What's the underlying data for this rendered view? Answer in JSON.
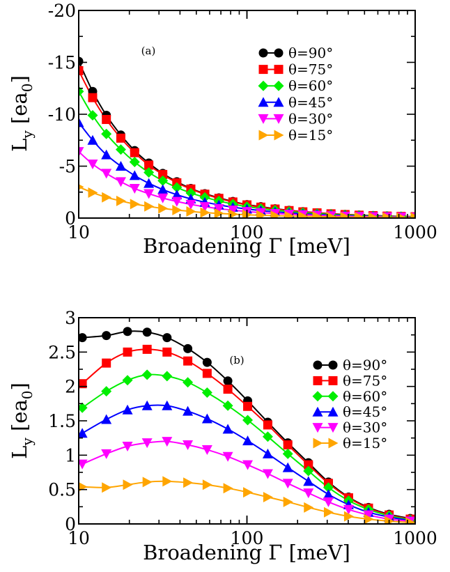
{
  "chart_data": [
    {
      "type": "line",
      "panel_label": "(a)",
      "xlabel": "Broadening Γ [meV]",
      "ylabel": {
        "main": "L",
        "sub": "y",
        "unit_pre": " [ea",
        "unit_sub": "0",
        "unit_post": "]"
      },
      "x_scale": "log",
      "xlim": [
        10,
        1000
      ],
      "ylim": [
        0,
        -20
      ],
      "x_ticks": [
        10,
        100,
        1000
      ],
      "x_tick_labels": [
        "10",
        "100",
        "1000"
      ],
      "y_ticks": [
        -20,
        -15,
        -10,
        -5,
        0
      ],
      "y_tick_labels": [
        "-20",
        "-15",
        "-10",
        "-5",
        "0"
      ],
      "legend_position": "top-right",
      "x": [
        10,
        12.1,
        14.6,
        17.8,
        21.5,
        26.1,
        31.6,
        38.3,
        46.4,
        56.2,
        68.1,
        82.5,
        100,
        121,
        147,
        178,
        215,
        261,
        316,
        383,
        464,
        562,
        681,
        825,
        1000
      ],
      "series": [
        {
          "name": "θ=90°",
          "color": "#000000",
          "marker": "circle",
          "values": [
            -15.1,
            -12.2,
            -9.9,
            -8.0,
            -6.5,
            -5.3,
            -4.3,
            -3.5,
            -2.85,
            -2.35,
            -1.95,
            -1.6,
            -1.3,
            -1.1,
            -0.9,
            -0.75,
            -0.62,
            -0.51,
            -0.42,
            -0.35,
            -0.29,
            -0.24,
            -0.2,
            -0.16,
            -0.13
          ]
        },
        {
          "name": "θ=75°",
          "color": "#ff0000",
          "marker": "square",
          "values": [
            -14.2,
            -11.6,
            -9.5,
            -7.7,
            -6.3,
            -5.1,
            -4.2,
            -3.4,
            -2.8,
            -2.3,
            -1.9,
            -1.55,
            -1.27,
            -1.05,
            -0.87,
            -0.72,
            -0.6,
            -0.5,
            -0.41,
            -0.34,
            -0.28,
            -0.23,
            -0.19,
            -0.16,
            -0.13
          ]
        },
        {
          "name": "θ=60°",
          "color": "#00ee00",
          "marker": "diamond",
          "values": [
            -12.2,
            -9.9,
            -8.1,
            -6.6,
            -5.4,
            -4.4,
            -3.6,
            -2.95,
            -2.42,
            -2.0,
            -1.65,
            -1.35,
            -1.1,
            -0.92,
            -0.76,
            -0.63,
            -0.52,
            -0.43,
            -0.36,
            -0.3,
            -0.25,
            -0.2,
            -0.17,
            -0.14,
            -0.11
          ]
        },
        {
          "name": "θ=45°",
          "color": "#0000ff",
          "marker": "triangle-up",
          "values": [
            -9.2,
            -7.5,
            -6.1,
            -5.0,
            -4.1,
            -3.35,
            -2.75,
            -2.25,
            -1.85,
            -1.53,
            -1.27,
            -1.05,
            -0.87,
            -0.72,
            -0.6,
            -0.5,
            -0.42,
            -0.35,
            -0.29,
            -0.24,
            -0.2,
            -0.17,
            -0.14,
            -0.12,
            -0.1
          ]
        },
        {
          "name": "θ=30°",
          "color": "#ff00ff",
          "marker": "triangle-down",
          "values": [
            -6.4,
            -5.2,
            -4.3,
            -3.5,
            -2.85,
            -2.35,
            -1.93,
            -1.6,
            -1.32,
            -1.1,
            -0.91,
            -0.76,
            -0.63,
            -0.53,
            -0.44,
            -0.37,
            -0.31,
            -0.26,
            -0.22,
            -0.18,
            -0.15,
            -0.13,
            -0.11,
            -0.09,
            -0.08
          ]
        },
        {
          "name": "θ=15°",
          "color": "#ffa500",
          "marker": "triangle-right",
          "values": [
            -3.0,
            -2.45,
            -2.0,
            -1.65,
            -1.35,
            -1.12,
            -0.93,
            -0.77,
            -0.64,
            -0.53,
            -0.45,
            -0.38,
            -0.32,
            -0.27,
            -0.23,
            -0.19,
            -0.16,
            -0.14,
            -0.12,
            -0.1,
            -0.08,
            -0.07,
            -0.06,
            -0.05,
            -0.04
          ]
        }
      ]
    },
    {
      "type": "line",
      "panel_label": "(b)",
      "xlabel": "Broadening Γ [meV]",
      "ylabel": {
        "main": "L",
        "sub": "y",
        "unit_pre": " [ea",
        "unit_sub": "0",
        "unit_post": "]"
      },
      "x_scale": "log",
      "xlim": [
        10,
        1000
      ],
      "ylim": [
        0,
        3
      ],
      "x_ticks": [
        10,
        100,
        1000
      ],
      "x_tick_labels": [
        "10",
        "100",
        "1000"
      ],
      "y_ticks": [
        0,
        0.5,
        1,
        1.5,
        2,
        2.5,
        3
      ],
      "y_tick_labels": [
        "0",
        "0.5",
        "1",
        "1.5",
        "2",
        "2.5",
        "3"
      ],
      "legend_position": "top-right",
      "x": [
        10.5,
        14.6,
        19.5,
        25.5,
        33.5,
        44.5,
        58,
        77,
        101,
        133,
        175,
        232,
        305,
        402,
        528,
        700,
        935
      ],
      "series": [
        {
          "name": "θ=90°",
          "color": "#000000",
          "marker": "circle",
          "values": [
            2.71,
            2.74,
            2.8,
            2.79,
            2.71,
            2.55,
            2.35,
            2.08,
            1.79,
            1.48,
            1.18,
            0.89,
            0.61,
            0.39,
            0.24,
            0.14,
            0.08
          ]
        },
        {
          "name": "θ=75°",
          "color": "#ff0000",
          "marker": "square",
          "values": [
            2.04,
            2.34,
            2.5,
            2.54,
            2.5,
            2.37,
            2.19,
            1.96,
            1.71,
            1.44,
            1.15,
            0.86,
            0.59,
            0.38,
            0.23,
            0.13,
            0.07
          ]
        },
        {
          "name": "θ=60°",
          "color": "#00ee00",
          "marker": "diamond",
          "values": [
            1.69,
            1.93,
            2.09,
            2.17,
            2.15,
            2.06,
            1.91,
            1.72,
            1.51,
            1.27,
            1.02,
            0.77,
            0.53,
            0.34,
            0.21,
            0.12,
            0.06
          ]
        },
        {
          "name": "θ=45°",
          "color": "#0000ff",
          "marker": "triangle-up",
          "values": [
            1.32,
            1.52,
            1.66,
            1.72,
            1.72,
            1.64,
            1.53,
            1.38,
            1.21,
            1.02,
            0.82,
            0.62,
            0.43,
            0.28,
            0.17,
            0.1,
            0.05
          ]
        },
        {
          "name": "θ=30°",
          "color": "#ff00ff",
          "marker": "triangle-down",
          "values": [
            0.87,
            1.02,
            1.13,
            1.18,
            1.2,
            1.15,
            1.08,
            0.98,
            0.86,
            0.73,
            0.59,
            0.45,
            0.32,
            0.21,
            0.13,
            0.07,
            0.04
          ]
        },
        {
          "name": "θ=15°",
          "color": "#ffa500",
          "marker": "triangle-right",
          "values": [
            0.54,
            0.53,
            0.57,
            0.61,
            0.62,
            0.6,
            0.57,
            0.52,
            0.46,
            0.39,
            0.32,
            0.24,
            0.17,
            0.11,
            0.07,
            0.04,
            0.02
          ]
        }
      ]
    }
  ]
}
